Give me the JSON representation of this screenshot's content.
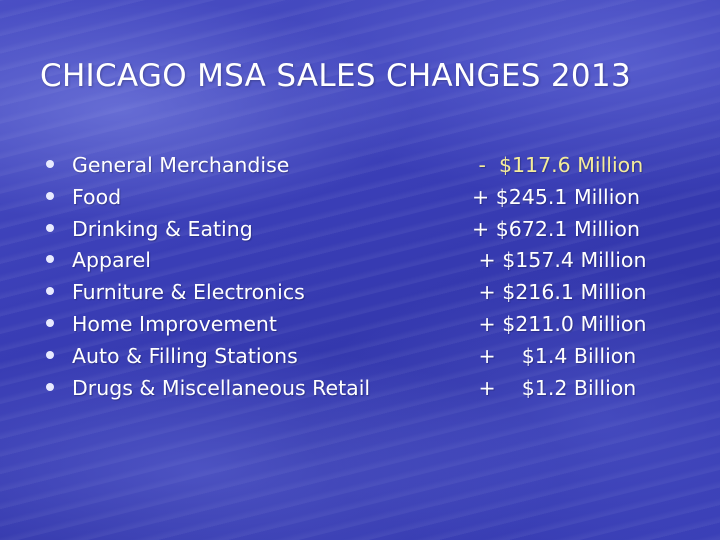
{
  "slide": {
    "title": "CHICAGO MSA SALES CHANGES 2013",
    "rows": [
      {
        "category": "General Merchandise",
        "change": " -  $117.6 Million",
        "negative": true
      },
      {
        "category": "Food",
        "change": "+ $245.1 Million",
        "negative": false
      },
      {
        "category": "Drinking & Eating",
        "change": "+ $672.1 Million",
        "negative": false
      },
      {
        "category": "Apparel",
        "change": " + $157.4 Million",
        "negative": false
      },
      {
        "category": "Furniture & Electronics",
        "change": " + $216.1 Million",
        "negative": false
      },
      {
        "category": "Home Improvement",
        "change": " + $211.0 Million",
        "negative": false
      },
      {
        "category": "Auto & Filling Stations",
        "change": " +    $1.4 Billion",
        "negative": false
      },
      {
        "category": "Drugs & Miscellaneous Retail",
        "change": " +    $1.2 Billion",
        "negative": false
      }
    ]
  }
}
